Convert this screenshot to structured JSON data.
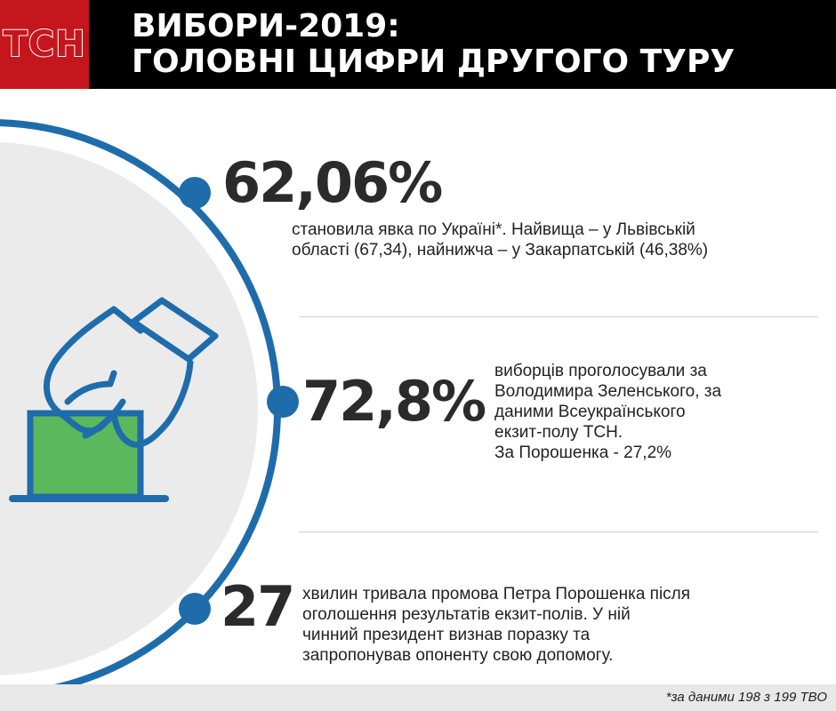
{
  "header": {
    "logo": "ТСН",
    "title_line1": "ВИБОРИ-2019:",
    "title_line2": "ГОЛОВНІ ЦИФРИ ДРУГОГО ТУРУ"
  },
  "stats": [
    {
      "value": "62,06%",
      "text_line1": "становила явка по Україні*. Найвища – у Львівській",
      "text_line2": "області (67,34), найнижча – у Закарпатській (46,38%)"
    },
    {
      "value": "72,8%",
      "text_line1": "виборців проголосували за",
      "text_line2": "Володимира Зеленського, за",
      "text_line3": "даними Всеукраїнського",
      "text_line4": "екзит-полу ТСН.",
      "text_line5": "За Порошенка - 27,2%"
    },
    {
      "value": "27",
      "text_line1": "хвилин тривала промова Петра Порошенка після",
      "text_line2": "оголошення результатів екзит-полів. У ній",
      "text_line3": "чинний президент визнав поразку та",
      "text_line4": "запропонував опоненту свою допомогу."
    }
  ],
  "footer": {
    "note": "*за даними 198 з 199 ТВО"
  },
  "colors": {
    "brand_red": "#c4161c",
    "accent_blue": "#1f6cab",
    "ballot_green": "#5cb85c",
    "circle_fill": "#ebebeb"
  },
  "icons": [
    "ballot-box-icon",
    "hand-icon"
  ]
}
